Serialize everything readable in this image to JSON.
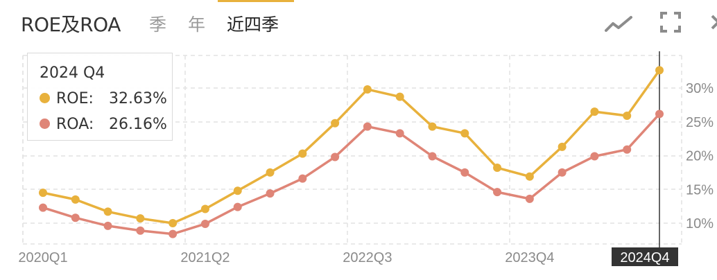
{
  "header": {
    "title": "ROE及ROA",
    "tabs": [
      {
        "label": "季",
        "active": false
      },
      {
        "label": "年",
        "active": false
      },
      {
        "label": "近四季",
        "active": true
      }
    ],
    "icons": [
      "line-chart-icon",
      "fullscreen-icon",
      "close-icon"
    ]
  },
  "tooltip": {
    "title": "2024 Q4",
    "rows": [
      {
        "label": "ROE:",
        "value": "32.63%",
        "color": "#e8b13c"
      },
      {
        "label": "ROA:",
        "value": "26.16%",
        "color": "#df8577"
      }
    ]
  },
  "colors": {
    "roe": "#e8b13c",
    "roa": "#df8577",
    "accent": "#e8b13c",
    "grid": "#e2e2e2"
  },
  "chart_data": {
    "type": "line",
    "categories": [
      "2020Q1",
      "2020Q2",
      "2020Q3",
      "2020Q4",
      "2021Q1",
      "2021Q2",
      "2021Q3",
      "2021Q4",
      "2022Q1",
      "2022Q2",
      "2022Q3",
      "2022Q4",
      "2023Q1",
      "2023Q2",
      "2023Q3",
      "2023Q4",
      "2024Q1",
      "2024Q2",
      "2024Q3",
      "2024Q4"
    ],
    "x_tick_labels": [
      "2020Q1",
      "2021Q2",
      "2022Q3",
      "2023Q4",
      "2024Q4"
    ],
    "series": [
      {
        "name": "ROE",
        "color": "#e8b13c",
        "values": [
          14.5,
          13.5,
          11.7,
          10.7,
          10.0,
          12.1,
          14.8,
          17.5,
          20.3,
          24.8,
          29.8,
          28.7,
          24.3,
          23.3,
          18.2,
          16.9,
          21.3,
          26.5,
          25.9,
          32.63
        ]
      },
      {
        "name": "ROA",
        "color": "#df8577",
        "values": [
          12.3,
          10.8,
          9.6,
          8.9,
          8.4,
          9.9,
          12.4,
          14.4,
          16.6,
          19.8,
          24.3,
          23.3,
          19.9,
          17.5,
          14.6,
          13.6,
          17.5,
          19.9,
          20.9,
          26.16
        ]
      }
    ],
    "y_ticks": [
      "10%",
      "15%",
      "20%",
      "25%",
      "30%"
    ],
    "y_tick_values": [
      10,
      15,
      20,
      25,
      30
    ],
    "ylim": [
      6.5,
      34
    ],
    "highlight_index": 19,
    "highlight_label": "2024Q4",
    "grid": true
  }
}
